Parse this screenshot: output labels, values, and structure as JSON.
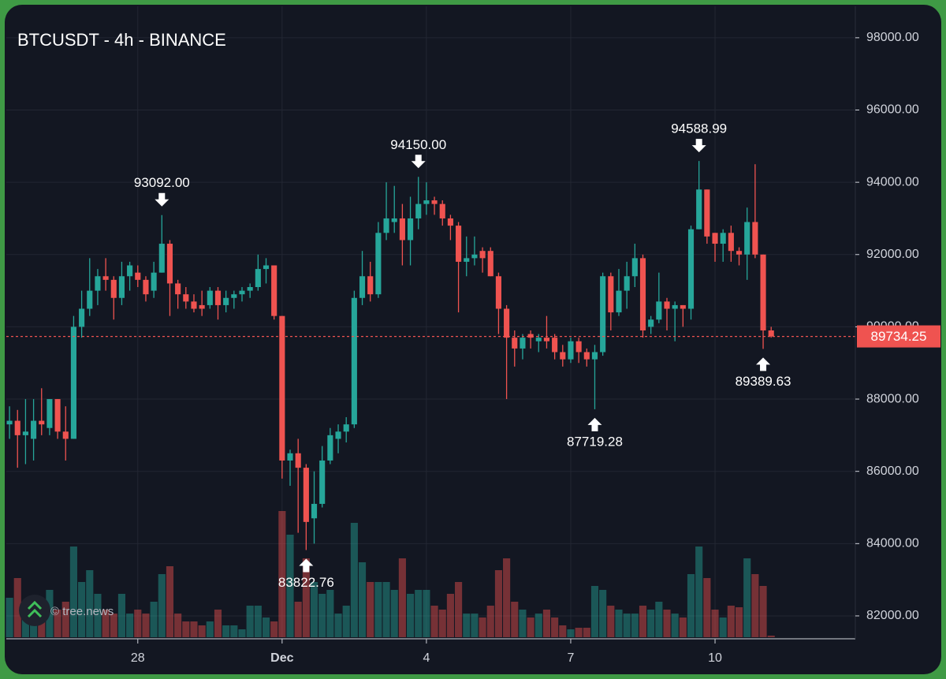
{
  "chart_data": {
    "type": "candlestick",
    "title": "BTCUSDT - 4h - BINANCE",
    "open": [
      87300,
      87400,
      87000,
      86900,
      87400,
      87200,
      88000,
      87100,
      86900,
      90000,
      90500,
      91000,
      91400,
      91300,
      90800,
      91400,
      91500,
      91300,
      91000,
      91500,
      92300,
      91200,
      90900,
      90700,
      90600,
      90600,
      91000,
      90600,
      90800,
      90900,
      91000,
      91100,
      91600,
      91700,
      90300,
      86300,
      86500,
      86100,
      84700,
      85100,
      86300,
      86900,
      87100,
      87300,
      90800,
      91400,
      90900,
      92600,
      92900,
      93000,
      92400,
      93000,
      93400,
      93500,
      93400,
      93000,
      92800,
      91800,
      91900,
      92100,
      92100,
      91400,
      90500,
      89700,
      89400,
      89800,
      89600,
      89700,
      89700,
      89300,
      89100,
      89600,
      89300,
      89100,
      89300,
      91400,
      90400,
      91000,
      91400,
      91900,
      90000,
      90200,
      90700,
      90500,
      90600,
      90500,
      92700,
      93800,
      92600,
      92300,
      92600,
      92100,
      92000,
      92900,
      92000,
      89900
    ],
    "high": [
      87800,
      87700,
      88000,
      88000,
      88300,
      88000,
      88000,
      87800,
      90300,
      91000,
      91900,
      91600,
      91900,
      91400,
      91800,
      91800,
      91700,
      91400,
      91800,
      93092,
      92400,
      91300,
      91100,
      90900,
      91000,
      91100,
      91100,
      91000,
      91000,
      91100,
      91200,
      92000,
      91900,
      91700,
      90300,
      86600,
      86900,
      86200,
      86000,
      86700,
      87200,
      87300,
      87500,
      91000,
      92100,
      91800,
      92900,
      94000,
      93900,
      93400,
      93600,
      94150,
      94000,
      93600,
      93500,
      93100,
      92900,
      92500,
      92500,
      92200,
      92200,
      91500,
      90600,
      89900,
      89800,
      89900,
      89800,
      90300,
      89800,
      89500,
      89700,
      89700,
      89400,
      89500,
      91500,
      91500,
      91600,
      91800,
      92300,
      92000,
      90300,
      91500,
      90800,
      90700,
      90600,
      92800,
      94588.99,
      93800,
      92600,
      92700,
      92800,
      92200,
      93300,
      94500,
      92000,
      90000
    ],
    "low": [
      86900,
      86100,
      86200,
      86300,
      87000,
      87000,
      86900,
      86300,
      86900,
      89700,
      90300,
      90600,
      91000,
      90200,
      90600,
      91000,
      91100,
      90700,
      90800,
      91500,
      90300,
      90500,
      90500,
      90400,
      90300,
      90500,
      90200,
      90400,
      90500,
      90700,
      90800,
      91000,
      91200,
      90200,
      85800,
      85600,
      84300,
      83822.76,
      84000,
      85000,
      86200,
      86500,
      86800,
      87200,
      90600,
      90700,
      90800,
      92400,
      92600,
      91700,
      91700,
      92700,
      93100,
      93100,
      92800,
      92400,
      90400,
      91400,
      91700,
      91500,
      91400,
      89800,
      88000,
      88900,
      89100,
      89400,
      89300,
      89400,
      89100,
      88900,
      89000,
      89000,
      88900,
      87719.28,
      89200,
      89900,
      90300,
      90500,
      91100,
      89700,
      89800,
      90100,
      89900,
      89600,
      90000,
      90200,
      92700,
      92300,
      91800,
      91800,
      91800,
      91700,
      91300,
      91900,
      89389.63,
      89700
    ],
    "close": [
      87400,
      87000,
      87100,
      87400,
      87300,
      88000,
      87100,
      86900,
      90000,
      90500,
      91000,
      91400,
      91300,
      90800,
      91400,
      91700,
      91300,
      90900,
      91500,
      92300,
      91200,
      90900,
      90700,
      90500,
      90500,
      91000,
      90600,
      90800,
      90900,
      91000,
      91100,
      91600,
      91700,
      90300,
      86300,
      86500,
      86100,
      84600,
      85100,
      86300,
      87000,
      87100,
      87300,
      90800,
      91400,
      90900,
      92600,
      93000,
      93000,
      92400,
      93000,
      93400,
      93500,
      93400,
      93000,
      92800,
      91800,
      91900,
      92000,
      91900,
      91400,
      90500,
      89700,
      89400,
      89700,
      89700,
      89700,
      89600,
      89300,
      89100,
      89600,
      89300,
      89100,
      89300,
      91400,
      90400,
      91000,
      91400,
      91900,
      89900,
      90200,
      90700,
      90500,
      90600,
      90500,
      92700,
      93800,
      92500,
      92300,
      92600,
      92100,
      92000,
      92900,
      92000,
      89900,
      89734.25
    ],
    "volume": [
      50,
      75,
      30,
      40,
      45,
      60,
      35,
      45,
      115,
      70,
      85,
      55,
      35,
      30,
      55,
      30,
      35,
      30,
      45,
      80,
      90,
      30,
      20,
      20,
      15,
      20,
      35,
      15,
      15,
      10,
      40,
      40,
      25,
      20,
      160,
      130,
      45,
      100,
      70,
      55,
      60,
      30,
      40,
      145,
      95,
      70,
      70,
      70,
      60,
      100,
      55,
      60,
      60,
      40,
      35,
      55,
      70,
      30,
      30,
      25,
      40,
      85,
      100,
      45,
      35,
      25,
      30,
      35,
      25,
      15,
      10,
      12,
      12,
      65,
      60,
      40,
      35,
      30,
      30,
      40,
      35,
      45,
      35,
      30,
      25,
      80,
      115,
      75,
      35,
      25,
      40,
      38,
      100,
      80,
      65,
      2
    ],
    "up_color": "#26a69a",
    "down_color": "#ef5350",
    "xlim": [
      -0.4,
      105.5
    ],
    "xticks": [
      {
        "value": 16,
        "label": "28"
      },
      {
        "value": 34,
        "label": "Dec"
      },
      {
        "value": 52,
        "label": "4"
      },
      {
        "value": 70,
        "label": "7"
      },
      {
        "value": 88,
        "label": "10"
      }
    ],
    "ylim": [
      81410,
      98870
    ],
    "yticks": [
      {
        "value": 82000,
        "label": "82000.00"
      },
      {
        "value": 84000,
        "label": "84000.00"
      },
      {
        "value": 86000,
        "label": "86000.00"
      },
      {
        "value": 88000,
        "label": "88000.00"
      },
      {
        "value": 90000,
        "label": "90000.00"
      },
      {
        "value": 92000,
        "label": "92000.00"
      },
      {
        "value": 94000,
        "label": "94000.00"
      },
      {
        "value": 96000,
        "label": "96000.00"
      },
      {
        "value": 98000,
        "label": "98000.00"
      }
    ],
    "grid": true,
    "annotations": [
      {
        "index": 19,
        "value": 93092,
        "label": "93092.00",
        "position": "above"
      },
      {
        "index": 51,
        "value": 94150,
        "label": "94150.00",
        "position": "above"
      },
      {
        "index": 86,
        "value": 94588.99,
        "label": "94588.99",
        "position": "above"
      },
      {
        "index": 37,
        "value": 83822.76,
        "label": "83822.76",
        "position": "below"
      },
      {
        "index": 73,
        "value": 87719.28,
        "label": "87719.28",
        "position": "below"
      },
      {
        "index": 94,
        "value": 89389.63,
        "label": "89389.63",
        "position": "below"
      }
    ],
    "last_price": {
      "value": 89734.25,
      "label": "89734.25",
      "color": "#ef5350"
    },
    "watermark": "© tree.news"
  }
}
